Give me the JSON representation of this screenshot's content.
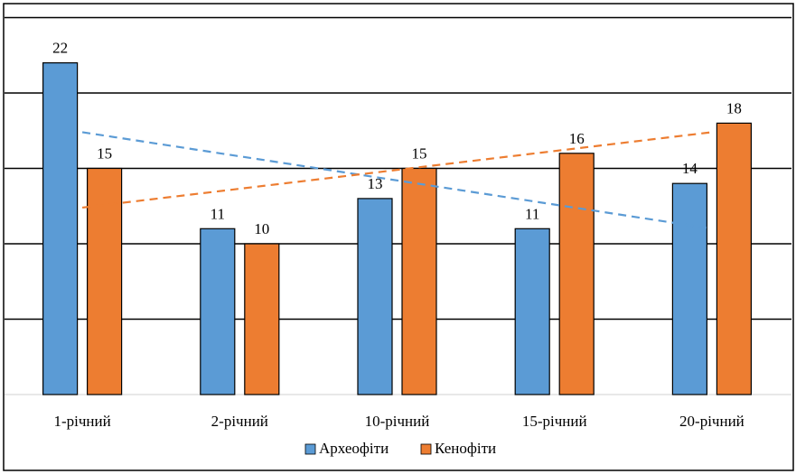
{
  "chart_data": {
    "type": "bar",
    "categories": [
      "1-річний",
      "2-річний",
      "10-річний",
      "15-річний",
      "20-річний"
    ],
    "series": [
      {
        "name": "Археофіти",
        "values": [
          22,
          11,
          13,
          11,
          14
        ],
        "color": "#5b9bd5"
      },
      {
        "name": "Кенофіти",
        "values": [
          15,
          10,
          15,
          16,
          18
        ],
        "color": "#ed7d31"
      }
    ],
    "trendlines": [
      {
        "series": "Археофіти",
        "style": "dashed",
        "from": 17.4,
        "to": 11.0
      },
      {
        "series": "Кенофіти",
        "style": "dashed",
        "from": 12.4,
        "to": 17.4
      }
    ],
    "ylim": [
      0,
      25
    ],
    "grid": true,
    "legend": "bottom",
    "xlabel": "",
    "ylabel": "",
    "title": ""
  }
}
